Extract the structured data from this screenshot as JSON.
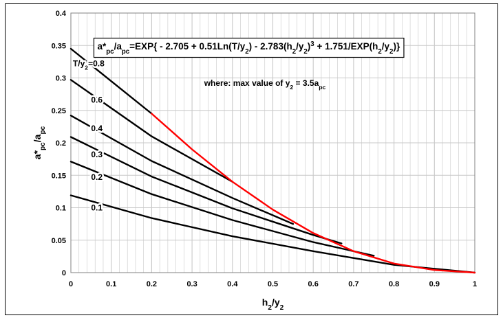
{
  "chart_data": {
    "type": "line",
    "title": "",
    "xlabel": {
      "base": "h",
      "sub1": "2",
      "mid": "/y",
      "sub2": "2"
    },
    "ylabel": {
      "base": "a*",
      "sub1": "pc",
      "mid": "/a",
      "sub2": "pc"
    },
    "xlim": [
      0,
      1
    ],
    "ylim": [
      0,
      0.4
    ],
    "xticks": [
      "0",
      "0.1",
      "0.2",
      "0.3",
      "0.4",
      "0.5",
      "0.6",
      "0.7",
      "0.8",
      "0.9",
      "1"
    ],
    "yticks": [
      "0",
      "0.05",
      "0.1",
      "0.15",
      "0.2",
      "0.25",
      "0.3",
      "0.35",
      "0.4"
    ],
    "grid": true,
    "series": [
      {
        "name": "T/y2=0.8",
        "color": "#000000",
        "points": [
          [
            0,
            0.345
          ],
          [
            0.2,
            0.245
          ]
        ]
      },
      {
        "name": "0.6",
        "color": "#000000",
        "points": [
          [
            0,
            0.297
          ],
          [
            0.2,
            0.21
          ],
          [
            0.4,
            0.14
          ]
        ]
      },
      {
        "name": "0.4",
        "color": "#000000",
        "points": [
          [
            0,
            0.242
          ],
          [
            0.2,
            0.172
          ],
          [
            0.4,
            0.115
          ],
          [
            0.55,
            0.075
          ]
        ]
      },
      {
        "name": "0.3",
        "color": "#000000",
        "points": [
          [
            0,
            0.209
          ],
          [
            0.2,
            0.148
          ],
          [
            0.4,
            0.099
          ],
          [
            0.6,
            0.058
          ],
          [
            0.67,
            0.045
          ]
        ]
      },
      {
        "name": "0.2",
        "color": "#000000",
        "points": [
          [
            0,
            0.171
          ],
          [
            0.2,
            0.121
          ],
          [
            0.4,
            0.081
          ],
          [
            0.6,
            0.047
          ],
          [
            0.75,
            0.026
          ]
        ]
      },
      {
        "name": "0.1",
        "color": "#000000",
        "points": [
          [
            0,
            0.119
          ],
          [
            0.2,
            0.084
          ],
          [
            0.4,
            0.056
          ],
          [
            0.6,
            0.033
          ],
          [
            0.8,
            0.012
          ],
          [
            1,
            0
          ]
        ]
      },
      {
        "name": "",
        "color": "#ff0000",
        "points": [
          [
            0.2,
            0.245
          ],
          [
            0.3,
            0.19
          ],
          [
            0.4,
            0.14
          ],
          [
            0.5,
            0.097
          ],
          [
            0.6,
            0.061
          ],
          [
            0.7,
            0.033
          ],
          [
            0.8,
            0.014
          ],
          [
            0.9,
            0.004
          ],
          [
            1,
            0
          ]
        ]
      }
    ],
    "curve_labels": [
      {
        "parts": [
          {
            "t": "T/y"
          },
          {
            "t": "2",
            "sub": true
          },
          {
            "t": "=0.8"
          }
        ],
        "x": 0.005,
        "y": 0.318
      },
      {
        "parts": [
          {
            "t": "0.6"
          }
        ],
        "x": 0.05,
        "y": 0.262
      },
      {
        "parts": [
          {
            "t": "0.4"
          }
        ],
        "x": 0.05,
        "y": 0.218
      },
      {
        "parts": [
          {
            "t": "0.3"
          }
        ],
        "x": 0.05,
        "y": 0.178
      },
      {
        "parts": [
          {
            "t": "0.2"
          }
        ],
        "x": 0.05,
        "y": 0.143
      },
      {
        "parts": [
          {
            "t": "0.1"
          }
        ],
        "x": 0.05,
        "y": 0.096
      }
    ],
    "annotations": {
      "note": {
        "parts": [
          {
            "t": "where: max value of y"
          },
          {
            "t": "2",
            "sub": true
          },
          {
            "t": " = 3.5a"
          },
          {
            "t": "pc",
            "sub": true
          }
        ],
        "x": 0.33,
        "y": 0.288
      },
      "formula": {
        "parts": [
          {
            "t": "a*"
          },
          {
            "t": "pc",
            "sub": true
          },
          {
            "t": "/a"
          },
          {
            "t": "pc",
            "sub": true
          },
          {
            "t": "=EXP{ - 2.705 + 0.51Ln(T/y"
          },
          {
            "t": "2",
            "sub": true
          },
          {
            "t": ") - 2.783(h"
          },
          {
            "t": "2",
            "sub": true
          },
          {
            "t": "/y"
          },
          {
            "t": "2",
            "sub": true
          },
          {
            "t": ")"
          },
          {
            "t": "3",
            "sup": true
          },
          {
            "t": " + 1.751/EXP(h"
          },
          {
            "t": "2",
            "sub": true
          },
          {
            "t": "/y"
          },
          {
            "t": "2",
            "sub": true
          },
          {
            "t": ")}"
          }
        ],
        "x": 0.057,
        "y": 0.364
      }
    }
  }
}
